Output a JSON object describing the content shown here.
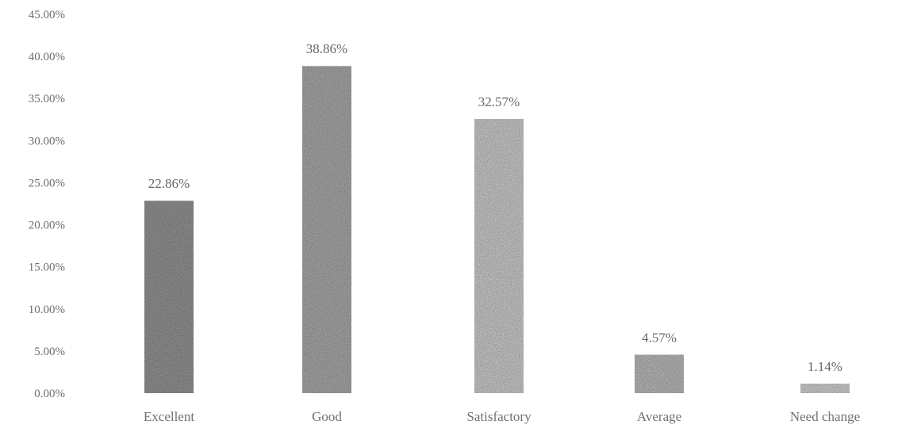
{
  "chart_data": {
    "type": "bar",
    "title": "",
    "xlabel": "",
    "ylabel": "",
    "categories": [
      "Excellent",
      "Good",
      "Satisfactory",
      "Average",
      "Need change"
    ],
    "values": [
      22.86,
      38.86,
      32.57,
      4.57,
      1.14
    ],
    "data_labels": [
      "22.86%",
      "38.86%",
      "32.57%",
      "4.57%",
      "1.14%"
    ],
    "ylim": [
      0,
      45
    ],
    "yticks": [
      0,
      5,
      10,
      15,
      20,
      25,
      30,
      35,
      40,
      45
    ],
    "ytick_labels": [
      "0.00%",
      "5.00%",
      "10.00%",
      "15.00%",
      "20.00%",
      "25.00%",
      "30.00%",
      "35.00%",
      "40.00%",
      "45.00%"
    ],
    "grid": false,
    "legend": "none",
    "bar_colors": [
      "#8f8f8f",
      "#a3a3a3",
      "#c4c4c4",
      "#b3b3b3",
      "#c9c9c9"
    ]
  }
}
